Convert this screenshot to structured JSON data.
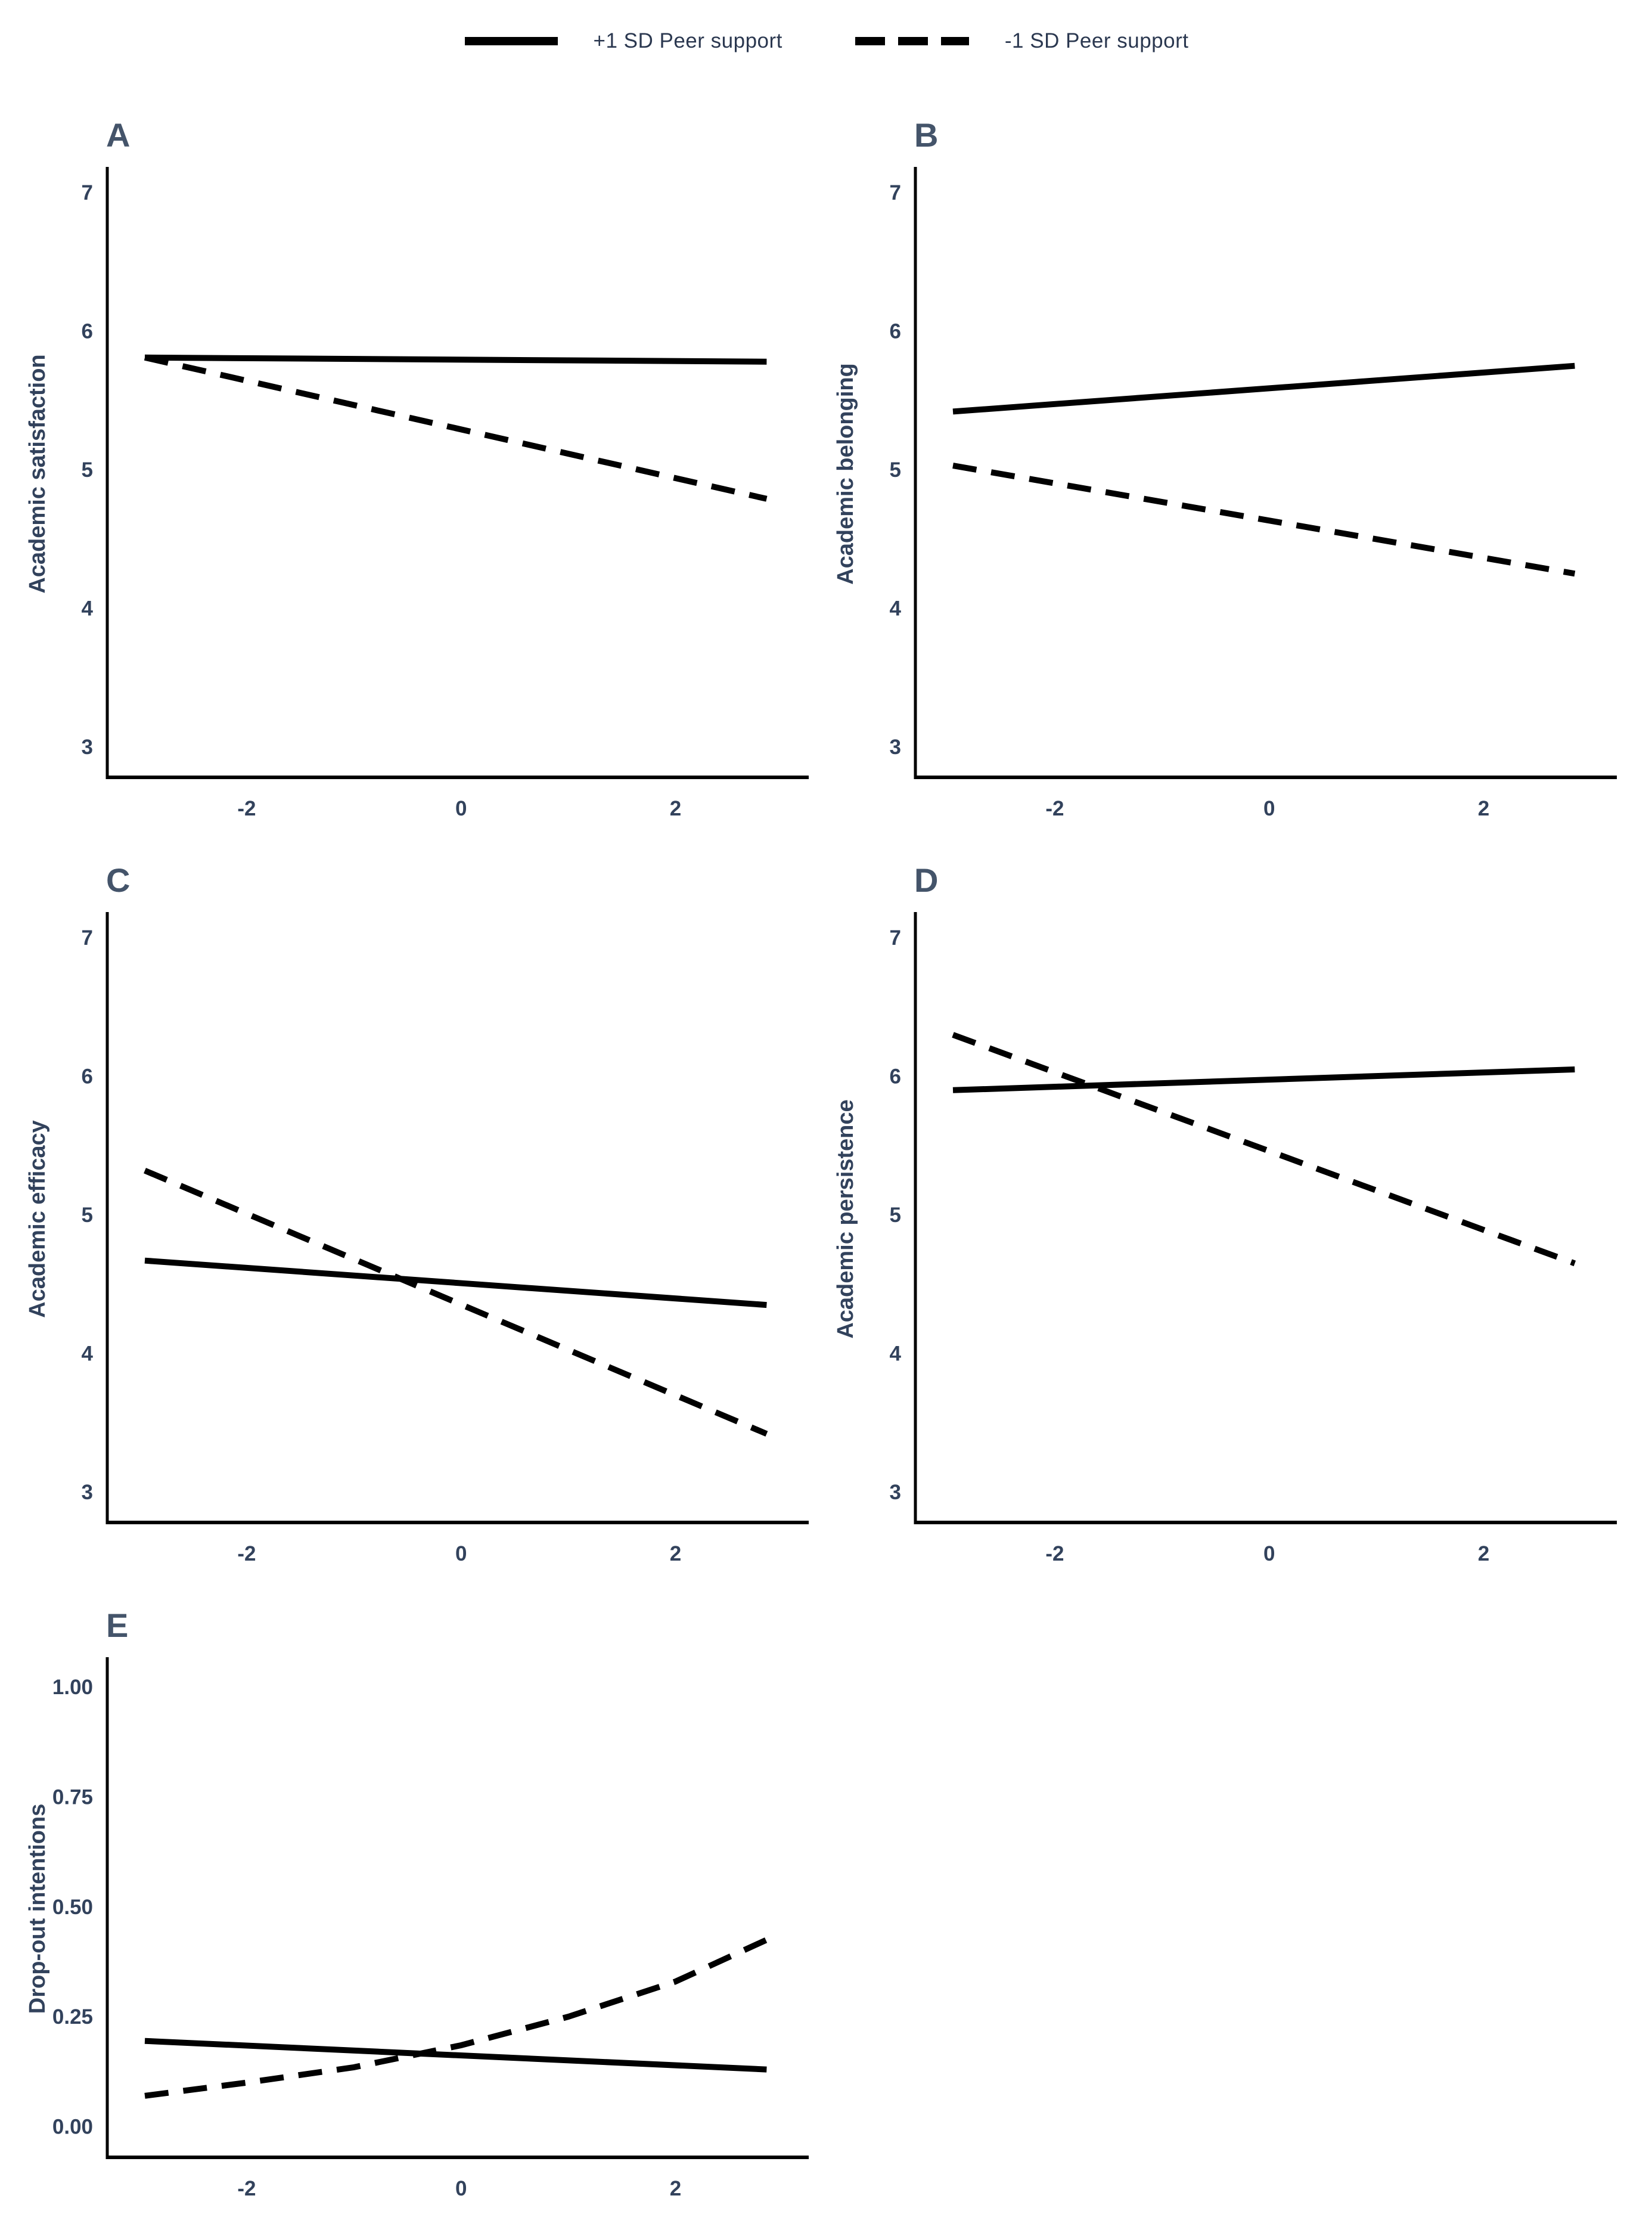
{
  "legend": {
    "items": [
      {
        "label": "+1 SD Peer support",
        "line_style": "solid"
      },
      {
        "label": "-1 SD Peer support",
        "line_style": "dashed"
      }
    ]
  },
  "colors": {
    "line": "#000000",
    "axis": "#000000",
    "tick_text": "#32425c",
    "panel_letter": "#44546a",
    "legend_text": "#2b3850"
  },
  "chart_data": [
    {
      "type": "line",
      "panel": "A",
      "ylabel": "Academic satisfaction",
      "xlabel": "",
      "xlim": [
        -3.3,
        3.22
      ],
      "ylim": [
        2.78,
        7.16
      ],
      "xticks": [
        {
          "v": -2,
          "label": "-2"
        },
        {
          "v": 0,
          "label": "0"
        },
        {
          "v": 2,
          "label": "2"
        }
      ],
      "yticks": [
        {
          "v": 7,
          "label": "7"
        },
        {
          "v": 6,
          "label": "6"
        },
        {
          "v": 5,
          "label": "5"
        },
        {
          "v": 4,
          "label": "4"
        },
        {
          "v": 3,
          "label": "3"
        }
      ],
      "series": [
        {
          "name": "+1 SD Peer support",
          "line_style": "solid",
          "x": [
            -2.95,
            2.85
          ],
          "y": [
            5.81,
            5.78
          ]
        },
        {
          "name": "-1 SD Peer support",
          "line_style": "dashed",
          "x": [
            -2.95,
            2.85
          ],
          "y": [
            5.81,
            4.79
          ]
        }
      ]
    },
    {
      "type": "line",
      "panel": "B",
      "ylabel": "Academic belonging",
      "xlabel": "",
      "xlim": [
        -3.3,
        3.22
      ],
      "ylim": [
        2.78,
        7.16
      ],
      "xticks": [
        {
          "v": -2,
          "label": "-2"
        },
        {
          "v": 0,
          "label": "0"
        },
        {
          "v": 2,
          "label": "2"
        }
      ],
      "yticks": [
        {
          "v": 7,
          "label": "7"
        },
        {
          "v": 6,
          "label": "6"
        },
        {
          "v": 5,
          "label": "5"
        },
        {
          "v": 4,
          "label": "4"
        },
        {
          "v": 3,
          "label": "3"
        }
      ],
      "series": [
        {
          "name": "+1 SD Peer support",
          "line_style": "solid",
          "x": [
            -2.95,
            2.85
          ],
          "y": [
            5.42,
            5.75
          ]
        },
        {
          "name": "-1 SD Peer support",
          "line_style": "dashed",
          "x": [
            -2.95,
            2.85
          ],
          "y": [
            5.03,
            4.25
          ]
        }
      ]
    },
    {
      "type": "line",
      "panel": "C",
      "ylabel": "Academic efficacy",
      "xlabel": "",
      "xlim": [
        -3.3,
        3.22
      ],
      "ylim": [
        2.78,
        7.16
      ],
      "xticks": [
        {
          "v": -2,
          "label": "-2"
        },
        {
          "v": 0,
          "label": "0"
        },
        {
          "v": 2,
          "label": "2"
        }
      ],
      "yticks": [
        {
          "v": 7,
          "label": "7"
        },
        {
          "v": 6,
          "label": "6"
        },
        {
          "v": 5,
          "label": "5"
        },
        {
          "v": 4,
          "label": "4"
        },
        {
          "v": 3,
          "label": "3"
        }
      ],
      "series": [
        {
          "name": "+1 SD Peer support",
          "line_style": "solid",
          "x": [
            -2.95,
            2.85
          ],
          "y": [
            4.67,
            4.35
          ]
        },
        {
          "name": "-1 SD Peer support",
          "line_style": "dashed",
          "x": [
            -2.95,
            2.85
          ],
          "y": [
            5.32,
            3.42
          ]
        }
      ]
    },
    {
      "type": "line",
      "panel": "D",
      "ylabel": "Academic persistence",
      "xlabel": "",
      "xlim": [
        -3.3,
        3.22
      ],
      "ylim": [
        2.78,
        7.16
      ],
      "xticks": [
        {
          "v": -2,
          "label": "-2"
        },
        {
          "v": 0,
          "label": "0"
        },
        {
          "v": 2,
          "label": "2"
        }
      ],
      "yticks": [
        {
          "v": 7,
          "label": "7"
        },
        {
          "v": 6,
          "label": "6"
        },
        {
          "v": 5,
          "label": "5"
        },
        {
          "v": 4,
          "label": "4"
        },
        {
          "v": 3,
          "label": "3"
        }
      ],
      "series": [
        {
          "name": "+1 SD Peer support",
          "line_style": "solid",
          "x": [
            -2.95,
            2.85
          ],
          "y": [
            5.9,
            6.05
          ]
        },
        {
          "name": "-1 SD Peer support",
          "line_style": "dashed",
          "x": [
            -2.95,
            2.85
          ],
          "y": [
            6.3,
            4.65
          ]
        }
      ]
    },
    {
      "type": "line",
      "panel": "E",
      "ylabel": "Drop-out intentions",
      "xlabel": "",
      "xlim": [
        -3.3,
        3.22
      ],
      "ylim": [
        -0.07,
        1.06
      ],
      "xticks": [
        {
          "v": -2,
          "label": "-2"
        },
        {
          "v": 0,
          "label": "0"
        },
        {
          "v": 2,
          "label": "2"
        }
      ],
      "yticks": [
        {
          "v": 1.0,
          "label": "1.00"
        },
        {
          "v": 0.75,
          "label": "0.75"
        },
        {
          "v": 0.5,
          "label": "0.50"
        },
        {
          "v": 0.25,
          "label": "0.25"
        },
        {
          "v": 0.0,
          "label": "0.00"
        }
      ],
      "series": [
        {
          "name": "+1 SD Peer support",
          "line_style": "solid",
          "x": [
            -2.95,
            2.85
          ],
          "y": [
            0.195,
            0.13
          ]
        },
        {
          "name": "-1 SD Peer support",
          "line_style": "dashed",
          "x": [
            -2.95,
            -2,
            -1,
            0,
            1,
            2,
            2.85
          ],
          "y": [
            0.07,
            0.1,
            0.135,
            0.185,
            0.25,
            0.33,
            0.425
          ]
        }
      ]
    }
  ]
}
